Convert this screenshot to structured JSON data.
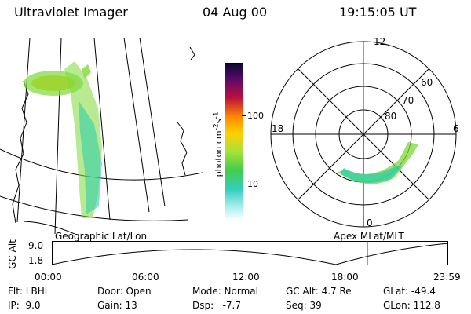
{
  "header": {
    "instrument": "Ultraviolet Imager",
    "date": "04 Aug 00",
    "time": "19:15:05 UT"
  },
  "colorbar": {
    "label_html": "photon cm<sup>-2</sup>s<sup>-1</sup>",
    "tick_100": "100",
    "tick_10": "10"
  },
  "polar": {
    "lat_rings": [
      "60",
      "70",
      "80"
    ],
    "mlt_hours": {
      "top": "12",
      "left": "18",
      "right": "6",
      "bottom": "0"
    }
  },
  "labels": {
    "geo": "Geographic Lat/Lon",
    "apex": "Apex MLat/MLT",
    "gc_alt": "GC Alt"
  },
  "timeline": {
    "y_ticks": [
      "9.0",
      "1.8"
    ],
    "x_ticks": [
      "00:00",
      "06:00",
      "12:00",
      "18:00",
      "23:59"
    ],
    "current_marker_color": "#cc0000"
  },
  "info_rows": [
    [
      "Flt: LBHL",
      "Door: Open",
      "Mode: Normal",
      "GC Alt: 4.7 Re",
      "GLat: -49.4"
    ],
    [
      "IP:  9.0",
      "Gain: 13",
      "Dsp:   -7.7",
      "Seq: 39",
      "GLon: 112.8"
    ]
  ],
  "colors": {
    "aurora_green": "#7dd838",
    "aurora_teal": "#33cfa8",
    "aurora_yellow": "#e8d020"
  }
}
